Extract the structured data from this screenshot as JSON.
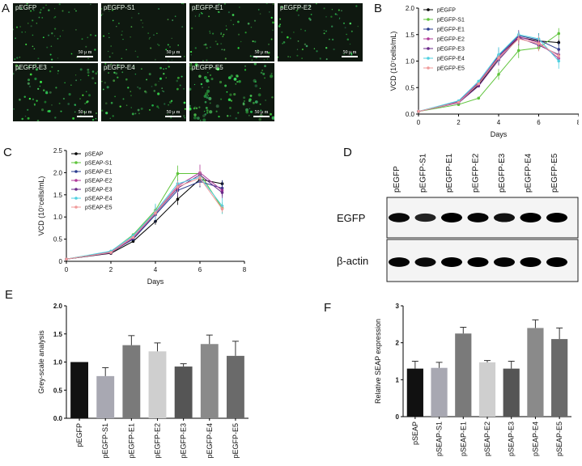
{
  "panels": {
    "A": "A",
    "B": "B",
    "C": "C",
    "D": "D",
    "E": "E",
    "F": "F"
  },
  "micrographs": {
    "scale_label": "50 μ m",
    "tiles": [
      {
        "label": "pEGFP",
        "intensity": 0.35
      },
      {
        "label": "pEGFP-S1",
        "intensity": 0.25
      },
      {
        "label": "pEGFP-E1",
        "intensity": 0.45
      },
      {
        "label": "pEGFP-E2",
        "intensity": 0.4
      },
      {
        "label": "pEGFP-E3",
        "intensity": 0.55
      },
      {
        "label": "pEGFP-E4",
        "intensity": 0.55
      },
      {
        "label": "pEGFP-E5",
        "intensity": 0.85
      }
    ]
  },
  "chart_data": [
    {
      "id": "B",
      "type": "line",
      "ylabel": "VCD (10⁷cells/mL)",
      "xlabel": "Days",
      "xlim": [
        0,
        8
      ],
      "ylim": [
        0,
        2
      ],
      "xticks": [
        "0",
        "2",
        "4",
        "6",
        "8"
      ],
      "yticks": [
        "0.0",
        "0.5",
        "1.0",
        "1.5",
        "2.0"
      ],
      "x": [
        0,
        2,
        3,
        4,
        5,
        6,
        7
      ],
      "series": [
        {
          "name": "pEGFP",
          "color": "#000000",
          "values": [
            0.05,
            0.22,
            0.55,
            1.05,
            1.45,
            1.38,
            1.35
          ]
        },
        {
          "name": "pEGFP-S1",
          "color": "#5fc43c",
          "values": [
            0.05,
            0.18,
            0.3,
            0.75,
            1.2,
            1.25,
            1.52
          ]
        },
        {
          "name": "pEGFP-E1",
          "color": "#2a3b8f",
          "values": [
            0.05,
            0.24,
            0.58,
            1.1,
            1.48,
            1.4,
            1.22
          ]
        },
        {
          "name": "pEGFP-E2",
          "color": "#b03a9a",
          "values": [
            0.05,
            0.23,
            0.6,
            1.08,
            1.46,
            1.35,
            1.05
          ]
        },
        {
          "name": "pEGFP-E3",
          "color": "#6a2a8a",
          "values": [
            0.05,
            0.21,
            0.53,
            1.02,
            1.44,
            1.3,
            1.12
          ]
        },
        {
          "name": "pEGFP-E4",
          "color": "#4fd0e0",
          "values": [
            0.05,
            0.25,
            0.62,
            1.12,
            1.5,
            1.42,
            1.0
          ]
        },
        {
          "name": "pEGFP-E5",
          "color": "#f09a9a",
          "values": [
            0.05,
            0.22,
            0.57,
            1.06,
            1.42,
            1.33,
            1.1
          ]
        }
      ]
    },
    {
      "id": "C",
      "type": "line",
      "ylabel": "VCD (10⁷cells/mL)",
      "xlabel": "Days",
      "xlim": [
        0,
        8
      ],
      "ylim": [
        0,
        2.5
      ],
      "xticks": [
        "0",
        "2",
        "4",
        "6",
        "8"
      ],
      "yticks": [
        "0",
        "0.5",
        "1.0",
        "1.5",
        "2.0",
        "2.5"
      ],
      "x": [
        0,
        2,
        3,
        4,
        5,
        6,
        7
      ],
      "series": [
        {
          "name": "pSEAP",
          "color": "#000000",
          "values": [
            0.05,
            0.18,
            0.45,
            0.9,
            1.4,
            1.85,
            1.75
          ]
        },
        {
          "name": "pSEAP-S1",
          "color": "#5fc43c",
          "values": [
            0.05,
            0.22,
            0.6,
            1.15,
            1.98,
            1.98,
            1.2
          ]
        },
        {
          "name": "pSEAP-E1",
          "color": "#2a3b8f",
          "values": [
            0.05,
            0.2,
            0.5,
            1.05,
            1.6,
            1.8,
            1.65
          ]
        },
        {
          "name": "pSEAP-E2",
          "color": "#b03a9a",
          "values": [
            0.05,
            0.21,
            0.55,
            1.1,
            1.7,
            2.0,
            1.6
          ]
        },
        {
          "name": "pSEAP-E3",
          "color": "#6a2a8a",
          "values": [
            0.05,
            0.19,
            0.52,
            1.08,
            1.65,
            1.95,
            1.55
          ]
        },
        {
          "name": "pSEAP-E4",
          "color": "#4fd0e0",
          "values": [
            0.05,
            0.23,
            0.58,
            1.12,
            1.75,
            1.9,
            1.25
          ]
        },
        {
          "name": "pSEAP-E5",
          "color": "#f09a9a",
          "values": [
            0.05,
            0.2,
            0.54,
            1.09,
            1.68,
            1.88,
            1.18
          ]
        }
      ]
    },
    {
      "id": "E",
      "type": "bar",
      "ylabel": "Grey-scale analysis",
      "xlabel": "",
      "ylim": [
        0,
        2.0
      ],
      "yticks": [
        "0.0",
        "0.5",
        "1.0",
        "1.5",
        "2.0"
      ],
      "categories": [
        "pEGFP",
        "pEGFP-S1",
        "pEGFP-E1",
        "pEGFP-E2",
        "pEGFP-E3",
        "pEGFP-E4",
        "pEGFP-E5"
      ],
      "values": [
        1.0,
        0.75,
        1.3,
        1.19,
        0.92,
        1.32,
        1.11
      ],
      "errors": [
        0,
        0.15,
        0.17,
        0.15,
        0.05,
        0.16,
        0.26
      ],
      "colors": [
        "#111111",
        "#a8a8b2",
        "#7a7a7a",
        "#cfcfcf",
        "#555555",
        "#8a8a8a",
        "#6a6a6a"
      ]
    },
    {
      "id": "F",
      "type": "bar",
      "ylabel": "Relative SEAP expression",
      "xlabel": "",
      "ylim": [
        0,
        3
      ],
      "yticks": [
        "0",
        "1",
        "2",
        "3"
      ],
      "categories": [
        "pSEAP",
        "pSEAP-S1",
        "pSEAP-E1",
        "pSEAP-E2",
        "pSEAP-E3",
        "pSEAP-E4",
        "pSEAP-E5"
      ],
      "values": [
        1.3,
        1.32,
        2.25,
        1.47,
        1.3,
        2.4,
        2.1
      ],
      "errors": [
        0.2,
        0.15,
        0.17,
        0.05,
        0.2,
        0.22,
        0.3
      ],
      "colors": [
        "#111111",
        "#a8a8b2",
        "#7a7a7a",
        "#cfcfcf",
        "#555555",
        "#8a8a8a",
        "#6a6a6a"
      ]
    }
  ],
  "blot": {
    "lanes": [
      "pEGFP",
      "pEGFP-S1",
      "pEGFP-E1",
      "pEGFP-E2",
      "pEGFP-E3",
      "pEGFP-E4",
      "pEGFP-E5"
    ],
    "rows": [
      {
        "label": "EGFP",
        "intensity": [
          0.9,
          0.7,
          1.0,
          0.95,
          0.85,
          1.0,
          1.0
        ]
      },
      {
        "label": "β-actin",
        "intensity": [
          0.95,
          0.9,
          1.0,
          1.0,
          0.95,
          1.0,
          1.0
        ]
      }
    ]
  }
}
